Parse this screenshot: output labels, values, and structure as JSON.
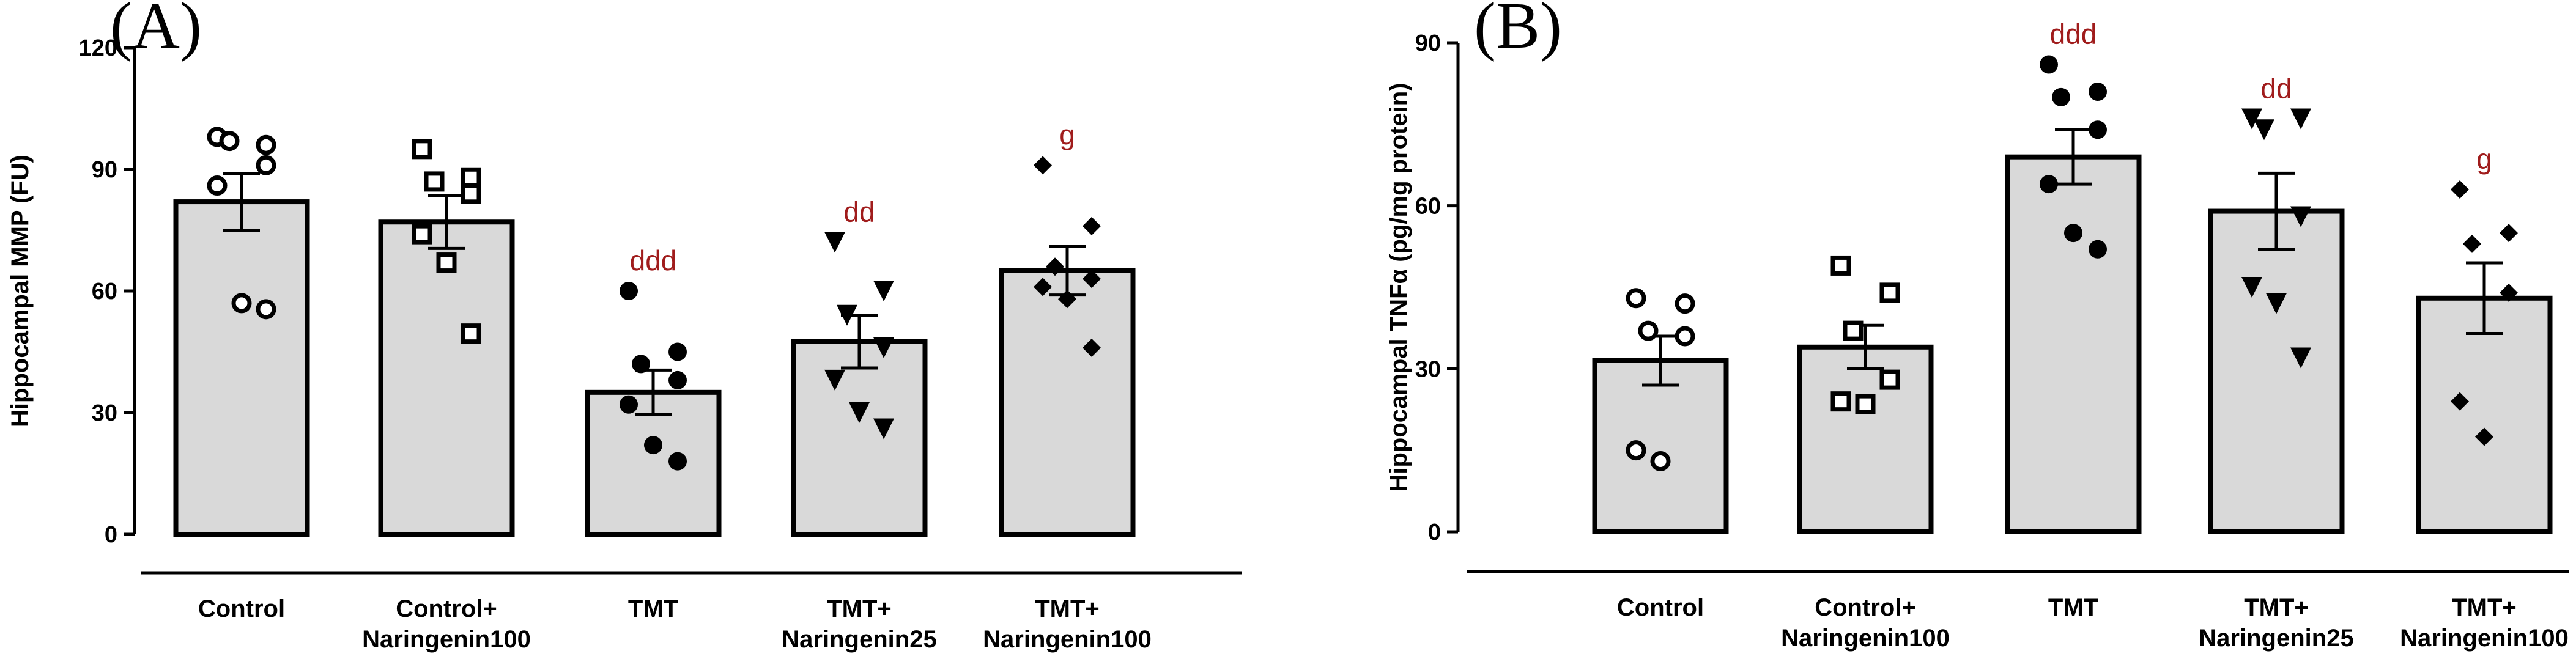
{
  "chart_data": [
    {
      "type": "bar",
      "panel_label": "(A)",
      "title": "",
      "xlabel": "",
      "ylabel": "Hippocampal MMP (FU)",
      "ylim": [
        0,
        120
      ],
      "yticks": [
        "0",
        "30",
        "60",
        "90",
        "120"
      ],
      "grid": false,
      "categories": [
        {
          "line1": "Control",
          "line2": ""
        },
        {
          "line1": "Control+",
          "line2": "Naringenin100"
        },
        {
          "line1": "TMT",
          "line2": ""
        },
        {
          "line1": "TMT+",
          "line2": "Naringenin25"
        },
        {
          "line1": "TMT+",
          "line2": "Naringenin100"
        }
      ],
      "values": [
        82,
        77,
        35,
        47.5,
        65
      ],
      "sem": [
        7,
        6.5,
        5.5,
        6.5,
        6
      ],
      "markers": [
        "open-circle",
        "open-square",
        "filled-circle",
        "filled-triangle-down",
        "filled-diamond"
      ],
      "points": [
        [
          98,
          96,
          97,
          91,
          86,
          57,
          55.5
        ],
        [
          95,
          88,
          87,
          84,
          74,
          67,
          49.5
        ],
        [
          60,
          45,
          42,
          38,
          32,
          22,
          18
        ],
        [
          72,
          60,
          54,
          46,
          38,
          30,
          26
        ],
        [
          91,
          76,
          66,
          63,
          61,
          58,
          46
        ]
      ],
      "significance": [
        "",
        "",
        "ddd",
        "dd",
        "g"
      ],
      "bar_color": "#d9d9d9",
      "sig_color": "#a01c1c"
    },
    {
      "type": "bar",
      "panel_label": "(B)",
      "title": "",
      "xlabel": "",
      "ylabel": "Hippocampal TNFα (pg/mg protein)",
      "ylim": [
        0,
        90
      ],
      "yticks": [
        "0",
        "30",
        "60",
        "90"
      ],
      "grid": false,
      "categories": [
        {
          "line1": "Control",
          "line2": ""
        },
        {
          "line1": "Control+",
          "line2": "Naringenin100"
        },
        {
          "line1": "TMT",
          "line2": ""
        },
        {
          "line1": "TMT+",
          "line2": "Naringenin25"
        },
        {
          "line1": "TMT+",
          "line2": "Naringenin100"
        }
      ],
      "values": [
        31.5,
        34,
        69,
        59,
        43
      ],
      "sem": [
        4.5,
        4,
        5,
        7,
        6.5
      ],
      "markers": [
        "open-circle",
        "open-square",
        "filled-circle",
        "filled-triangle-down",
        "filled-diamond"
      ],
      "points": [
        [
          43,
          42,
          37,
          36,
          15,
          13
        ],
        [
          49,
          44,
          37,
          28,
          24,
          23.5
        ],
        [
          86,
          81,
          80,
          74,
          64,
          55,
          52
        ],
        [
          76,
          76,
          74,
          58,
          45,
          42,
          32
        ],
        [
          63,
          55,
          53,
          44,
          24,
          17.5
        ]
      ],
      "significance": [
        "",
        "",
        "ddd",
        "dd",
        "g"
      ],
      "bar_color": "#d9d9d9",
      "sig_color": "#a01c1c"
    }
  ]
}
